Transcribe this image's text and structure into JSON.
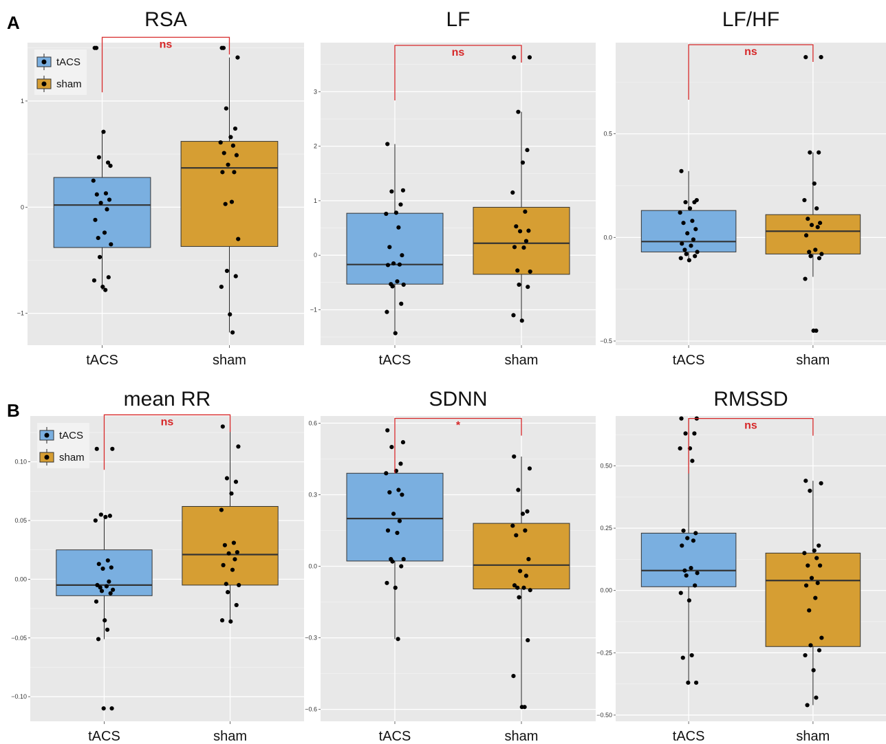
{
  "colors": {
    "tacs": "#7aafe0",
    "sham": "#d69e33",
    "panel_bg": "#e8e8e8",
    "grid": "#ffffff",
    "bracket": "#d62728",
    "point": "#000000"
  },
  "legend": {
    "items": [
      "tACS",
      "sham"
    ]
  },
  "chart_data": [
    {
      "panel_label": "A",
      "title": "RSA",
      "type": "box",
      "categories": [
        "tACS",
        "sham"
      ],
      "yticks": [
        -1,
        0,
        1
      ],
      "tick_labels": [
        "−1",
        "0",
        "1"
      ],
      "ylim": [
        -1.3,
        1.55
      ],
      "legend": true,
      "boxes": [
        {
          "name": "tACS",
          "min": -0.78,
          "q1": -0.38,
          "median": 0.02,
          "q3": 0.28,
          "max": 0.71
        },
        {
          "name": "sham",
          "min": -1.18,
          "q1": -0.37,
          "median": 0.37,
          "q3": 0.62,
          "max": 1.41
        }
      ],
      "points": [
        [
          1.5,
          0.39,
          0.47,
          0.42,
          0.71,
          0.25,
          0.13,
          0.12,
          0.07,
          0.04,
          -0.02,
          -0.12,
          -0.24,
          -0.29,
          -0.35,
          -0.47,
          -0.66,
          -0.69,
          -0.75,
          -0.78,
          1.5
        ],
        [
          1.5,
          1.41,
          0.93,
          0.74,
          0.66,
          0.61,
          0.58,
          0.51,
          0.49,
          0.4,
          0.33,
          0.33,
          0.05,
          0.03,
          -0.3,
          -0.6,
          -0.65,
          -0.75,
          -1.01,
          -1.18,
          1.5
        ]
      ],
      "significance": "ns",
      "bracket_y": 1.6
    },
    {
      "panel_label": "",
      "title": "LF",
      "type": "box",
      "categories": [
        "tACS",
        "sham"
      ],
      "yticks": [
        -1,
        0,
        1,
        2,
        3
      ],
      "tick_labels": [
        "−1",
        "0",
        "1",
        "2",
        "3"
      ],
      "ylim": [
        -1.65,
        3.9
      ],
      "legend": false,
      "boxes": [
        {
          "name": "tACS",
          "min": -1.43,
          "q1": -0.53,
          "median": -0.17,
          "q3": 0.77,
          "max": 2.04
        },
        {
          "name": "sham",
          "min": -1.2,
          "q1": -0.35,
          "median": 0.22,
          "q3": 0.88,
          "max": 2.63
        }
      ],
      "points": [
        [
          2.04,
          1.19,
          1.17,
          0.93,
          0.78,
          0.76,
          0.51,
          0.15,
          0.0,
          -0.15,
          -0.17,
          -0.18,
          -0.48,
          -0.53,
          -0.54,
          -0.57,
          -0.89,
          -1.04,
          -1.43
        ],
        [
          3.63,
          3.63,
          2.63,
          1.93,
          1.7,
          1.15,
          0.8,
          0.53,
          0.45,
          0.44,
          0.26,
          0.15,
          0.14,
          -0.28,
          -0.3,
          -0.54,
          -0.58,
          -1.1,
          -1.2
        ]
      ],
      "significance": "ns",
      "bracket_y": 3.85
    },
    {
      "panel_label": "",
      "title": "LF/HF",
      "type": "box",
      "categories": [
        "tACS",
        "sham"
      ],
      "yticks": [
        -0.5,
        0.0,
        0.5
      ],
      "tick_labels": [
        "−0.5",
        "0.0",
        "0.5"
      ],
      "ylim": [
        -0.52,
        0.94
      ],
      "legend": false,
      "boxes": [
        {
          "name": "tACS",
          "min": -0.11,
          "q1": -0.07,
          "median": -0.02,
          "q3": 0.13,
          "max": 0.32
        },
        {
          "name": "sham",
          "min": -0.19,
          "q1": -0.08,
          "median": 0.03,
          "q3": 0.11,
          "max": 0.41
        }
      ],
      "points": [
        [
          0.32,
          0.18,
          0.17,
          0.17,
          0.14,
          0.12,
          0.08,
          0.07,
          0.04,
          0.02,
          -0.01,
          -0.03,
          -0.04,
          -0.06,
          -0.07,
          -0.08,
          -0.09,
          -0.1,
          -0.11
        ],
        [
          0.87,
          0.87,
          0.41,
          0.41,
          0.26,
          0.18,
          0.14,
          0.09,
          0.07,
          0.06,
          0.05,
          0.01,
          -0.06,
          -0.07,
          -0.08,
          -0.09,
          -0.1,
          -0.2,
          -0.45,
          -0.45
        ]
      ],
      "significance": "ns",
      "bracket_y": 0.93
    },
    {
      "panel_label": "B",
      "title": "mean RR",
      "type": "box",
      "categories": [
        "tACS",
        "sham"
      ],
      "yticks": [
        -0.1,
        -0.05,
        0.0,
        0.05,
        0.1
      ],
      "tick_labels": [
        "−0.10",
        "−0.05",
        "0.00",
        "0.05",
        "0.10"
      ],
      "ylim": [
        -0.121,
        0.139
      ],
      "legend": true,
      "boxes": [
        {
          "name": "tACS",
          "min": -0.051,
          "q1": -0.014,
          "median": -0.005,
          "q3": 0.025,
          "max": 0.054
        },
        {
          "name": "sham",
          "min": -0.036,
          "q1": -0.005,
          "median": 0.021,
          "q3": 0.062,
          "max": 0.13
        }
      ],
      "points": [
        [
          0.111,
          0.111,
          0.055,
          0.054,
          0.053,
          0.05,
          0.016,
          0.013,
          0.01,
          0.009,
          -0.002,
          -0.005,
          -0.006,
          -0.007,
          -0.009,
          -0.01,
          -0.012,
          -0.019,
          -0.035,
          -0.043,
          -0.051,
          -0.11,
          -0.11
        ],
        [
          0.13,
          0.113,
          0.086,
          0.083,
          0.073,
          0.059,
          0.031,
          0.029,
          0.023,
          0.022,
          0.017,
          0.012,
          0.008,
          -0.004,
          -0.005,
          -0.011,
          -0.022,
          -0.035,
          -0.036
        ]
      ],
      "significance": "ns",
      "bracket_y": 0.14
    },
    {
      "panel_label": "",
      "title": "SDNN",
      "type": "box",
      "categories": [
        "tACS",
        "sham"
      ],
      "yticks": [
        -0.6,
        -0.3,
        0.0,
        0.3,
        0.6
      ],
      "tick_labels": [
        "−0.6",
        "−0.3",
        "0.0",
        "0.3",
        "0.6"
      ],
      "ylim": [
        -0.65,
        0.63
      ],
      "legend": false,
      "boxes": [
        {
          "name": "tACS",
          "min": -0.305,
          "q1": 0.022,
          "median": 0.2,
          "q3": 0.39,
          "max": 0.57
        },
        {
          "name": "sham",
          "min": -0.59,
          "q1": -0.095,
          "median": 0.005,
          "q3": 0.18,
          "max": 0.46
        }
      ],
      "points": [
        [
          0.57,
          0.52,
          0.5,
          0.43,
          0.4,
          0.39,
          0.32,
          0.31,
          0.3,
          0.22,
          0.19,
          0.15,
          0.14,
          0.03,
          0.03,
          0.02,
          0.0,
          -0.07,
          -0.09,
          -0.305
        ],
        [
          0.46,
          0.41,
          0.32,
          0.23,
          0.22,
          0.17,
          0.15,
          0.13,
          0.03,
          -0.02,
          -0.04,
          -0.08,
          -0.09,
          -0.09,
          -0.1,
          -0.13,
          -0.31,
          -0.46,
          -0.59,
          -0.59
        ]
      ],
      "significance": "*",
      "bracket_y": 0.62
    },
    {
      "panel_label": "",
      "title": "RMSSD",
      "type": "box",
      "categories": [
        "tACS",
        "sham"
      ],
      "yticks": [
        -0.5,
        -0.25,
        0.0,
        0.25,
        0.5
      ],
      "tick_labels": [
        "−0.50",
        "−0.25",
        "0.00",
        "0.25",
        "0.50"
      ],
      "ylim": [
        -0.525,
        0.7
      ],
      "legend": false,
      "boxes": [
        {
          "name": "tACS",
          "min": -0.37,
          "q1": 0.015,
          "median": 0.08,
          "q3": 0.23,
          "max": 0.69
        },
        {
          "name": "sham",
          "min": -0.46,
          "q1": -0.225,
          "median": 0.04,
          "q3": 0.15,
          "max": 0.44
        }
      ],
      "points": [
        [
          0.69,
          0.69,
          0.63,
          0.63,
          0.57,
          0.57,
          0.52,
          0.24,
          0.23,
          0.21,
          0.2,
          0.18,
          0.09,
          0.08,
          0.07,
          0.06,
          0.02,
          -0.01,
          -0.04,
          -0.26,
          -0.27,
          -0.37,
          -0.37
        ],
        [
          0.44,
          0.43,
          0.4,
          0.18,
          0.16,
          0.15,
          0.13,
          0.1,
          0.1,
          0.05,
          0.03,
          0.02,
          -0.03,
          -0.08,
          -0.19,
          -0.22,
          -0.24,
          -0.26,
          -0.32,
          -0.43,
          -0.46
        ]
      ],
      "significance": "ns",
      "bracket_y": 0.69
    }
  ]
}
